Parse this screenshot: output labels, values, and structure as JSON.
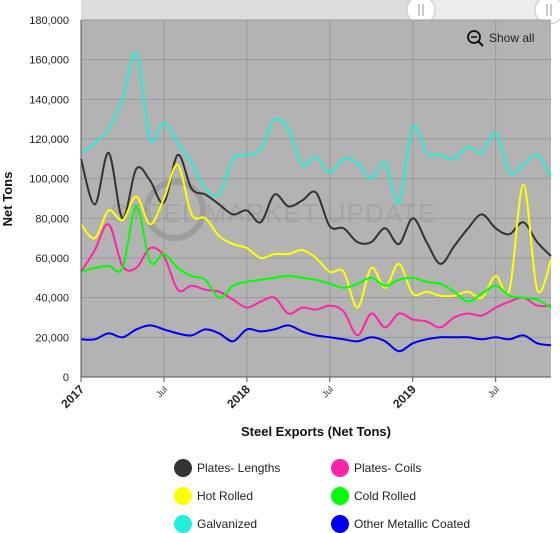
{
  "chart_data": {
    "type": "line",
    "xlabel": "Steel Exports (Net Tons)",
    "ylabel": "Net Tons",
    "ylim": [
      0,
      180000
    ],
    "yticks": [
      "0",
      "20,000",
      "40,000",
      "60,000",
      "80,000",
      "100,000",
      "120,000",
      "140,000",
      "160,000",
      "180,000"
    ],
    "xlim": [
      0,
      34
    ],
    "xticks": [
      {
        "label": "2017",
        "x": 0,
        "major": true
      },
      {
        "label": "Jul",
        "x": 6,
        "major": false
      },
      {
        "label": "2018",
        "x": 12,
        "major": true
      },
      {
        "label": "Jul",
        "x": 18,
        "major": false
      },
      {
        "label": "2019",
        "x": 24,
        "major": true
      },
      {
        "label": "Jul",
        "x": 30,
        "major": false
      }
    ],
    "x_unit": "months since Jan 2017",
    "plot_background": "#b3b3b3",
    "grid": true,
    "legend_position": "bottom",
    "watermark": "STEEL MARKET UPDATE",
    "show_all_label": "Show all",
    "series": [
      {
        "name": "Plates- Lengths",
        "color": "#333333",
        "values": [
          110000,
          87000,
          113000,
          80000,
          105000,
          99000,
          88000,
          112000,
          95000,
          92000,
          87000,
          82000,
          84000,
          78000,
          92000,
          86000,
          89000,
          93000,
          76000,
          75000,
          68000,
          68000,
          75000,
          67000,
          80000,
          68000,
          57000,
          66000,
          75000,
          82000,
          75000,
          72000,
          78000,
          68000,
          61000
        ]
      },
      {
        "name": "Plates- Coils",
        "color": "#ff22aa",
        "values": [
          53000,
          64000,
          77000,
          56000,
          55000,
          65000,
          61000,
          44000,
          46000,
          44000,
          43000,
          39000,
          35000,
          38000,
          40000,
          32000,
          35000,
          34000,
          36000,
          33000,
          21000,
          32000,
          25000,
          32000,
          29000,
          28000,
          25000,
          30000,
          32000,
          31000,
          35000,
          38000,
          40000,
          36000,
          36000
        ]
      },
      {
        "name": "Hot Rolled",
        "color": "#ffff00",
        "values": [
          77000,
          70000,
          84000,
          79000,
          91000,
          77000,
          90000,
          107000,
          82000,
          80000,
          71000,
          67000,
          65000,
          60000,
          62000,
          62000,
          64000,
          60000,
          53000,
          53000,
          35000,
          55000,
          45000,
          57000,
          42000,
          43000,
          41000,
          41000,
          43000,
          40000,
          51000,
          44000,
          97000,
          44000,
          59000
        ]
      },
      {
        "name": "Cold Rolled",
        "color": "#00ff00",
        "values": [
          53000,
          55000,
          56000,
          55000,
          86000,
          58000,
          62000,
          55000,
          51000,
          49000,
          40000,
          46000,
          48000,
          49000,
          50000,
          51000,
          50000,
          49000,
          47000,
          45000,
          47000,
          50000,
          46000,
          49000,
          50000,
          48000,
          47000,
          43000,
          38000,
          42000,
          46000,
          41000,
          40000,
          39000,
          35000
        ]
      },
      {
        "name": "Galvanized",
        "color": "#22eedd",
        "values": [
          113000,
          118000,
          125000,
          140000,
          163000,
          120000,
          128000,
          118000,
          108000,
          95000,
          92000,
          110000,
          112000,
          115000,
          130000,
          125000,
          107000,
          111000,
          103000,
          110000,
          108000,
          100000,
          108000,
          88000,
          126000,
          113000,
          112000,
          110000,
          116000,
          113000,
          123000,
          103000,
          107000,
          112000,
          101000
        ]
      },
      {
        "name": "Other Metallic Coated",
        "color": "#0000ee",
        "values": [
          19000,
          19000,
          22000,
          20000,
          24000,
          26000,
          24000,
          22000,
          21000,
          24000,
          22000,
          18000,
          24000,
          23000,
          24000,
          26000,
          23000,
          21000,
          20000,
          19000,
          18000,
          20000,
          18000,
          13000,
          17000,
          19000,
          20000,
          20000,
          20000,
          19000,
          20000,
          19000,
          21000,
          17000,
          16000
        ]
      }
    ]
  }
}
